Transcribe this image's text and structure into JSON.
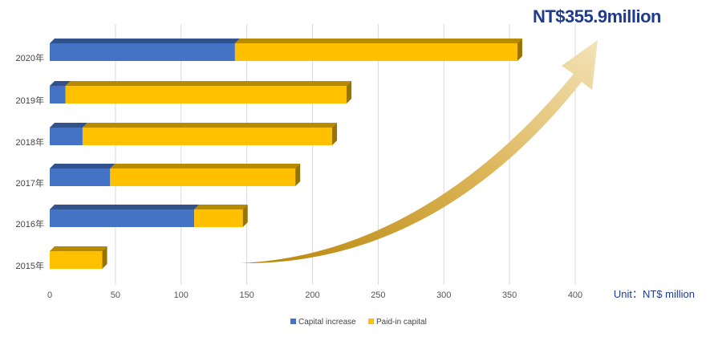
{
  "chart_data": {
    "type": "bar",
    "orientation": "horizontal",
    "stacked": true,
    "categories": [
      "2020年",
      "2019年",
      "2018年",
      "2017年",
      "2016年",
      "2015年"
    ],
    "series": [
      {
        "name": "Capital increase",
        "color": "#4472c4",
        "values": [
          141,
          12,
          25,
          46,
          110,
          0
        ]
      },
      {
        "name": "Paid-in capital",
        "color": "#ffc000",
        "values": [
          215,
          214,
          190,
          141,
          37,
          40
        ]
      }
    ],
    "xlim": [
      0,
      400
    ],
    "xticks": [
      0,
      50,
      100,
      150,
      200,
      250,
      300,
      350,
      400
    ],
    "grid": true,
    "legend": "bottom",
    "unit_label": "Unit：NT$ million",
    "annotation": "NT$355.9million"
  }
}
